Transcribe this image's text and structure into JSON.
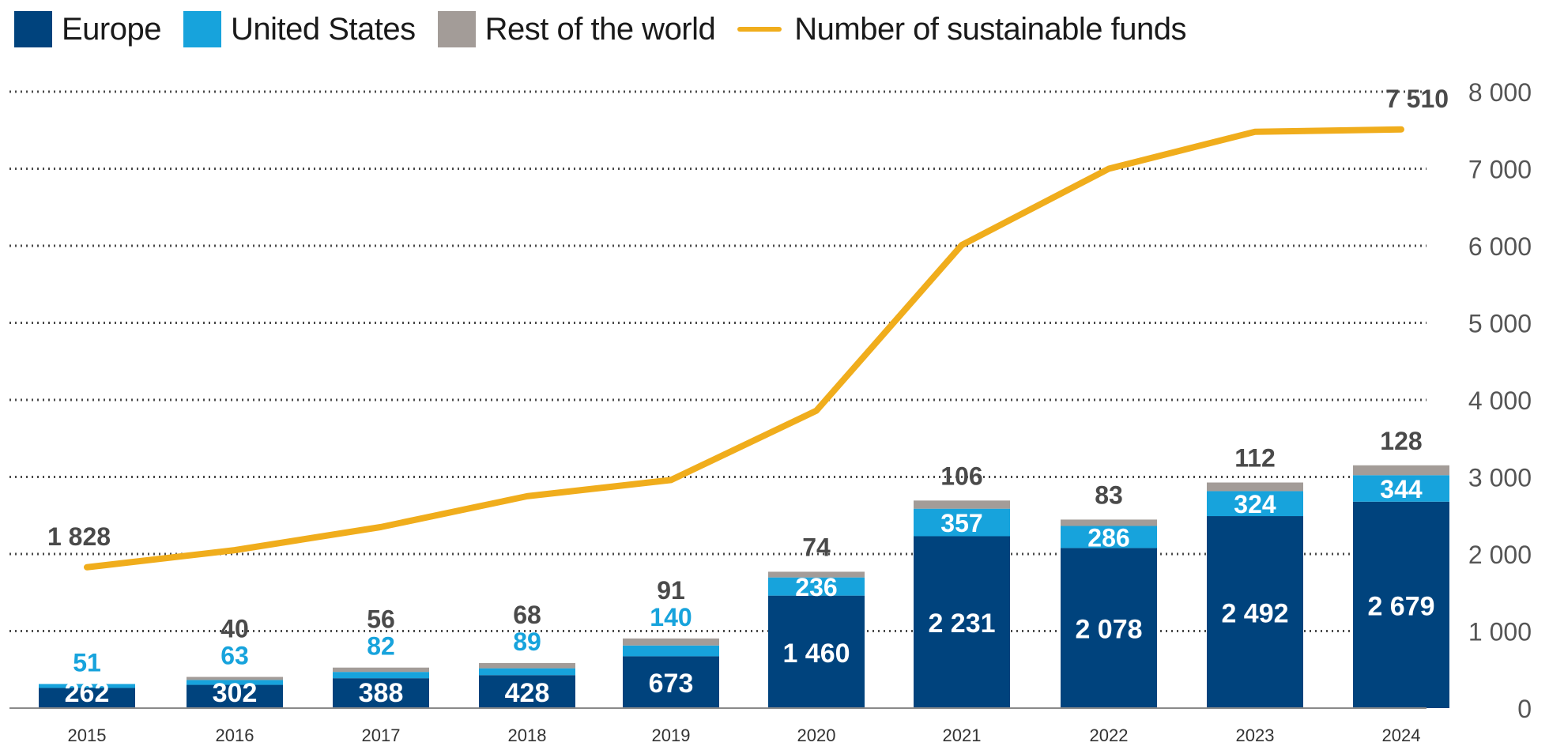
{
  "legend": {
    "europe": "Europe",
    "us": "United States",
    "rest": "Rest of the world",
    "line": "Number of sustainable funds"
  },
  "colors": {
    "europe": "#00437d",
    "us": "#17a3dc",
    "rest": "#a39c98",
    "line": "#f0ad1c",
    "grid": "#4a4a4a",
    "axis_text": "#555555",
    "label_dark": "#4a4a4a"
  },
  "chart_data": {
    "type": "bar",
    "stacked": true,
    "categories": [
      "2015",
      "2016",
      "2017",
      "2018",
      "2019",
      "2020",
      "2021",
      "2022",
      "2023",
      "2024"
    ],
    "series": [
      {
        "name": "Europe",
        "values": [
          262,
          302,
          388,
          428,
          673,
          1460,
          2231,
          2078,
          2492,
          2679
        ]
      },
      {
        "name": "United States",
        "values": [
          51,
          63,
          82,
          89,
          140,
          236,
          357,
          286,
          324,
          344
        ]
      },
      {
        "name": "Rest of the world",
        "values": [
          0,
          40,
          56,
          68,
          91,
          74,
          106,
          83,
          112,
          128
        ]
      }
    ],
    "bar_labels": {
      "europe": [
        "262",
        "302",
        "388",
        "428",
        "673",
        "1 460",
        "2 231",
        "2 078",
        "2 492",
        "2 679"
      ],
      "us": [
        "51",
        "63",
        "82",
        "89",
        "140",
        "236",
        "357",
        "286",
        "324",
        "344"
      ],
      "rest": [
        "",
        "40",
        "56",
        "68",
        "91",
        "74",
        "106",
        "83",
        "112",
        "128"
      ]
    },
    "line_series": {
      "name": "Number of sustainable funds",
      "axis": "right",
      "values": [
        1828,
        2050,
        2350,
        2750,
        2960,
        3860,
        6010,
        7000,
        7480,
        7510
      ],
      "labels": [
        "1 828",
        "",
        "",
        "",
        "",
        "",
        "",
        "",
        "",
        "7 510"
      ]
    },
    "right_axis": {
      "ylim": [
        0,
        8000
      ],
      "ticks": [
        0,
        1000,
        2000,
        3000,
        4000,
        5000,
        6000,
        7000,
        8000
      ],
      "tick_labels": [
        "0",
        "1 000",
        "2 000",
        "3 000",
        "4 000",
        "5 000",
        "6 000",
        "7 000",
        "8 000"
      ]
    },
    "grid": true,
    "legend_position": "top-left"
  }
}
